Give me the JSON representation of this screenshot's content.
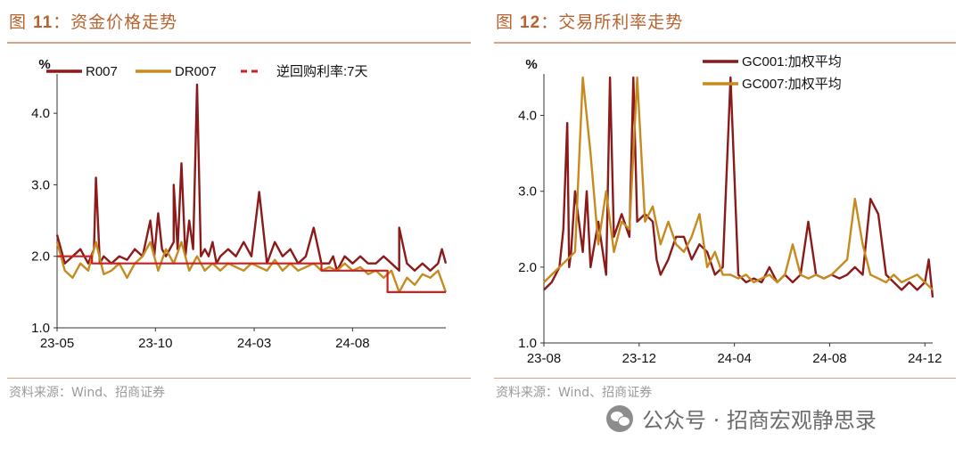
{
  "figures": [
    {
      "title_prefix": "图 ",
      "title_num": "11",
      "title_text": "：资金价格走势",
      "source": "资料来源：Wind、招商证券"
    },
    {
      "title_prefix": "图 ",
      "title_num": "12",
      "title_text": "：交易所利率走势",
      "source": "资料来源：Wind、招商证券"
    }
  ],
  "watermark": "公众号 · 招商宏观静思录",
  "chart_data": [
    {
      "type": "line",
      "ylabel": "%",
      "ylim": [
        1.0,
        4.5
      ],
      "yticks": [
        "1.0",
        "2.0",
        "3.0",
        "4.0"
      ],
      "xticks": [
        "23-05",
        "23-10",
        "24-03",
        "24-08"
      ],
      "grid": false,
      "legend_position": "top",
      "series": [
        {
          "name": "R007",
          "color": "#8b1a1a",
          "style": "solid",
          "x": [
            0,
            0.02,
            0.04,
            0.06,
            0.08,
            0.095,
            0.1,
            0.11,
            0.12,
            0.14,
            0.16,
            0.18,
            0.2,
            0.22,
            0.24,
            0.25,
            0.26,
            0.27,
            0.28,
            0.3,
            0.3,
            0.31,
            0.32,
            0.33,
            0.34,
            0.35,
            0.36,
            0.37,
            0.38,
            0.39,
            0.4,
            0.41,
            0.42,
            0.44,
            0.46,
            0.48,
            0.5,
            0.52,
            0.54,
            0.56,
            0.58,
            0.6,
            0.62,
            0.64,
            0.66,
            0.68,
            0.7,
            0.71,
            0.72,
            0.74,
            0.76,
            0.78,
            0.8,
            0.82,
            0.84,
            0.86,
            0.88,
            0.88,
            0.9,
            0.92,
            0.94,
            0.96,
            0.98,
            0.99,
            1.0
          ],
          "values": [
            2.3,
            1.9,
            2.0,
            2.1,
            1.9,
            2.1,
            3.1,
            1.9,
            2.0,
            1.9,
            2.0,
            1.95,
            2.1,
            2.0,
            2.5,
            2.0,
            2.6,
            2.1,
            2.0,
            2.2,
            3.0,
            2.1,
            3.3,
            2.0,
            2.5,
            2.1,
            4.4,
            2.0,
            2.1,
            2.0,
            2.2,
            1.9,
            2.0,
            2.1,
            2.0,
            2.2,
            2.0,
            2.9,
            1.9,
            2.2,
            2.0,
            2.1,
            1.9,
            2.0,
            2.4,
            1.9,
            1.9,
            2.0,
            1.8,
            2.0,
            1.9,
            2.0,
            1.9,
            1.9,
            2.0,
            1.9,
            1.8,
            2.4,
            1.9,
            1.8,
            1.9,
            1.8,
            1.9,
            2.1,
            1.9
          ]
        },
        {
          "name": "DR007",
          "color": "#c68a1f",
          "style": "solid",
          "x": [
            0,
            0.02,
            0.04,
            0.06,
            0.08,
            0.1,
            0.12,
            0.14,
            0.16,
            0.18,
            0.2,
            0.22,
            0.24,
            0.26,
            0.28,
            0.3,
            0.32,
            0.34,
            0.36,
            0.38,
            0.4,
            0.42,
            0.44,
            0.46,
            0.48,
            0.5,
            0.52,
            0.54,
            0.56,
            0.58,
            0.6,
            0.62,
            0.64,
            0.66,
            0.68,
            0.7,
            0.72,
            0.74,
            0.76,
            0.78,
            0.8,
            0.82,
            0.84,
            0.86,
            0.88,
            0.9,
            0.92,
            0.94,
            0.96,
            0.98,
            1.0
          ],
          "values": [
            2.2,
            1.8,
            1.7,
            1.9,
            1.8,
            2.2,
            1.75,
            1.8,
            1.9,
            1.7,
            1.9,
            2.0,
            2.2,
            1.8,
            2.1,
            1.9,
            2.2,
            1.8,
            2.0,
            1.8,
            1.9,
            1.8,
            1.9,
            1.85,
            1.8,
            1.9,
            1.85,
            1.8,
            1.95,
            1.8,
            1.9,
            1.8,
            1.85,
            1.9,
            1.8,
            1.85,
            1.8,
            1.9,
            1.8,
            1.85,
            1.75,
            1.8,
            1.7,
            1.8,
            1.5,
            1.7,
            1.6,
            1.75,
            1.7,
            1.8,
            1.5
          ]
        },
        {
          "name": "逆回购利率:7天",
          "color": "#cc1f1f",
          "style": "dashed",
          "x": [
            0,
            0.09,
            0.09,
            0.68,
            0.68,
            0.85,
            0.85,
            1.0
          ],
          "values": [
            2.0,
            2.0,
            1.9,
            1.9,
            1.8,
            1.8,
            1.5,
            1.5
          ]
        }
      ]
    },
    {
      "type": "line",
      "ylabel": "%",
      "ylim": [
        1.0,
        4.5
      ],
      "yticks": [
        "1.0",
        "2.0",
        "3.0",
        "4.0"
      ],
      "xticks": [
        "23-08",
        "23-12",
        "24-04",
        "24-08",
        "24-12"
      ],
      "grid": false,
      "legend_position": "top-right",
      "series": [
        {
          "name": "GC001:加权平均",
          "color": "#8b1a1a",
          "style": "solid",
          "x": [
            0,
            0.02,
            0.04,
            0.05,
            0.06,
            0.065,
            0.07,
            0.08,
            0.1,
            0.11,
            0.12,
            0.14,
            0.16,
            0.17,
            0.18,
            0.2,
            0.22,
            0.23,
            0.24,
            0.26,
            0.28,
            0.29,
            0.3,
            0.32,
            0.34,
            0.36,
            0.38,
            0.4,
            0.42,
            0.44,
            0.46,
            0.48,
            0.5,
            0.52,
            0.54,
            0.56,
            0.58,
            0.6,
            0.62,
            0.64,
            0.66,
            0.68,
            0.7,
            0.72,
            0.74,
            0.76,
            0.78,
            0.8,
            0.82,
            0.84,
            0.86,
            0.88,
            0.9,
            0.92,
            0.94,
            0.96,
            0.98,
            0.99,
            1.0
          ],
          "values": [
            1.7,
            1.8,
            2.0,
            2.5,
            3.9,
            2.0,
            2.2,
            3.0,
            2.2,
            3.0,
            2.0,
            2.6,
            1.9,
            4.5,
            2.4,
            2.7,
            2.4,
            4.5,
            2.6,
            2.7,
            2.6,
            2.1,
            1.9,
            2.1,
            2.4,
            2.4,
            2.1,
            2.3,
            2.2,
            1.9,
            2.0,
            4.5,
            1.9,
            1.8,
            1.85,
            1.8,
            2.0,
            1.8,
            1.9,
            1.8,
            1.9,
            2.6,
            1.9,
            1.85,
            1.9,
            1.85,
            1.9,
            2.0,
            1.9,
            2.9,
            2.7,
            1.9,
            1.8,
            1.7,
            1.8,
            1.7,
            1.8,
            2.1,
            1.6
          ]
        },
        {
          "name": "GC007:加权平均",
          "color": "#c68a1f",
          "style": "solid",
          "x": [
            0,
            0.02,
            0.04,
            0.06,
            0.08,
            0.1,
            0.12,
            0.14,
            0.16,
            0.18,
            0.2,
            0.22,
            0.24,
            0.26,
            0.28,
            0.3,
            0.32,
            0.34,
            0.36,
            0.38,
            0.4,
            0.42,
            0.44,
            0.46,
            0.48,
            0.5,
            0.52,
            0.54,
            0.56,
            0.58,
            0.6,
            0.62,
            0.64,
            0.66,
            0.68,
            0.7,
            0.72,
            0.74,
            0.76,
            0.78,
            0.8,
            0.82,
            0.84,
            0.86,
            0.88,
            0.9,
            0.92,
            0.94,
            0.96,
            0.98,
            1.0
          ],
          "values": [
            1.8,
            1.9,
            2.0,
            2.1,
            2.2,
            4.5,
            3.5,
            2.3,
            3.0,
            2.2,
            2.6,
            2.5,
            4.5,
            2.6,
            2.8,
            2.3,
            2.6,
            2.3,
            2.2,
            2.4,
            2.7,
            2.0,
            2.2,
            1.9,
            1.9,
            1.85,
            1.9,
            1.8,
            1.85,
            1.9,
            1.8,
            1.9,
            2.3,
            1.9,
            1.85,
            1.9,
            1.85,
            1.9,
            2.0,
            2.1,
            2.9,
            2.3,
            1.9,
            1.85,
            1.8,
            1.9,
            1.8,
            1.85,
            1.9,
            1.8,
            1.7
          ]
        }
      ]
    }
  ]
}
